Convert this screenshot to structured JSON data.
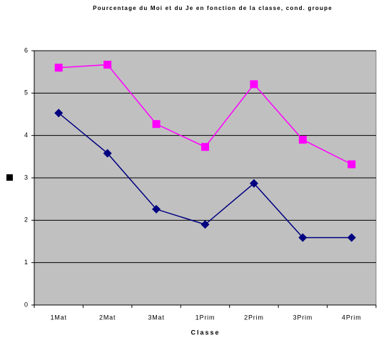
{
  "chart_data": {
    "type": "line",
    "title": "Pourcentage du Moi et du Je en fonction de la classe, cond. groupe",
    "x_label": "Classe",
    "categories": [
      "1Mat",
      "2Mat",
      "3Mat",
      "1Prim",
      "2Prim",
      "3Prim",
      "4Prim"
    ],
    "series": [
      {
        "color": "#ff00ff",
        "marker": "square",
        "values": [
          5.6,
          5.67,
          4.27,
          3.73,
          5.21,
          3.9,
          3.32
        ]
      },
      {
        "color": "#000080",
        "marker": "diamond",
        "values": [
          4.53,
          3.58,
          2.26,
          1.9,
          2.87,
          1.59,
          1.59
        ]
      }
    ],
    "ylim": [
      0,
      6
    ],
    "yticks": [
      0,
      1,
      2,
      3,
      4,
      5,
      6
    ],
    "grid": true
  }
}
